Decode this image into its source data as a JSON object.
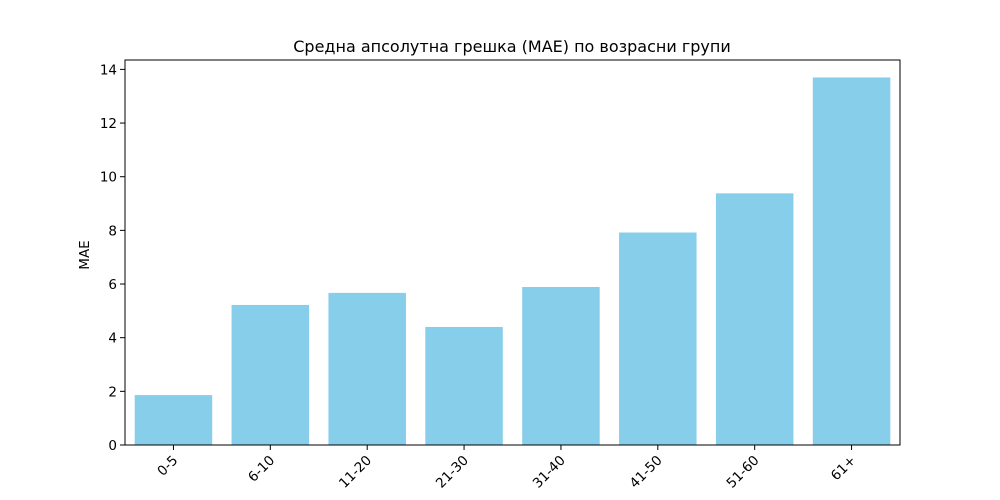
{
  "chart_data": {
    "type": "bar",
    "title": "Средна апсолутна грешка (MAE) по возрасни групи",
    "xlabel": "",
    "ylabel": "MAE",
    "categories": [
      "0-5",
      "6-10",
      "11-20",
      "21-30",
      "31-40",
      "41-50",
      "51-60",
      "61+"
    ],
    "values": [
      1.86,
      5.22,
      5.67,
      4.4,
      5.89,
      7.92,
      9.38,
      13.7
    ],
    "ylim": [
      0,
      14.35
    ],
    "yticks": [
      0,
      2,
      4,
      6,
      8,
      10,
      12,
      14
    ],
    "bar_color": "#87CEEB",
    "grid": false
  }
}
